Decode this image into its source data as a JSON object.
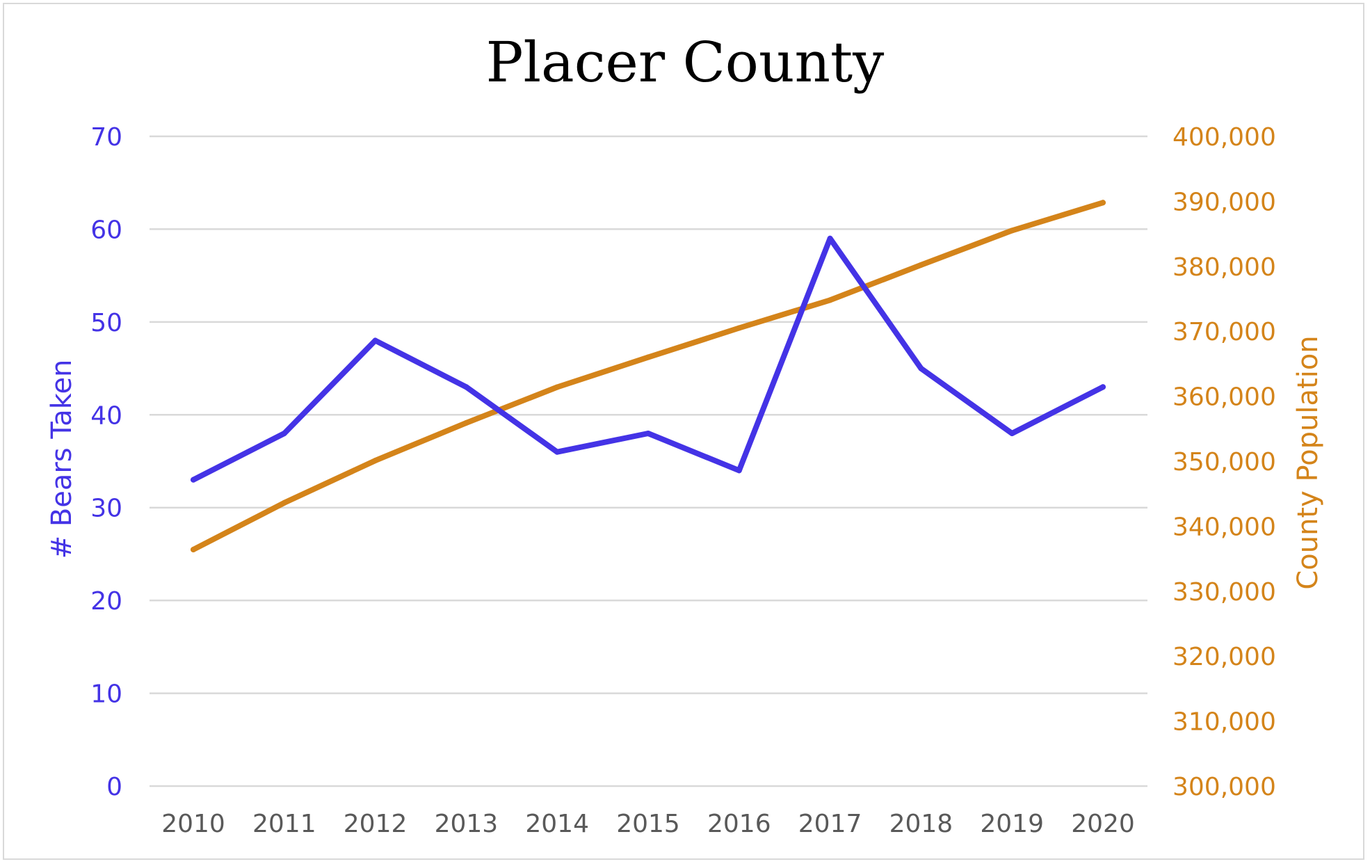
{
  "chart_data": {
    "type": "line",
    "title": "Placer County",
    "x": [
      "2010",
      "2011",
      "2012",
      "2013",
      "2014",
      "2015",
      "2016",
      "2017",
      "2018",
      "2019",
      "2020"
    ],
    "series": [
      {
        "name": "# Bears Taken",
        "axis": "left",
        "color": "#4433e6",
        "values": [
          33,
          38,
          48,
          43,
          36,
          38,
          34,
          59,
          45,
          38,
          43
        ]
      },
      {
        "name": "County Population",
        "axis": "right",
        "color": "#d4841a",
        "values": [
          336400,
          343600,
          350100,
          355900,
          361400,
          366000,
          370500,
          374800,
          380200,
          385500,
          389800
        ]
      }
    ],
    "ylabel_left": "# Bears Taken",
    "ylabel_right": "County Population",
    "ylim_left": [
      0,
      70
    ],
    "ylim_right": [
      300000,
      400000
    ],
    "yticks_left": [
      "0",
      "10",
      "20",
      "30",
      "40",
      "50",
      "60",
      "70"
    ],
    "yticks_right": [
      "300,000",
      "310,000",
      "320,000",
      "330,000",
      "340,000",
      "350,000",
      "360,000",
      "370,000",
      "380,000",
      "390,000",
      "400,000"
    ],
    "grid": true,
    "legend": "none",
    "colors": {
      "left_axis": "#4433e6",
      "right_axis": "#d4841a",
      "x_ticks": "#595959",
      "gridline": "#d9d9d9"
    }
  }
}
